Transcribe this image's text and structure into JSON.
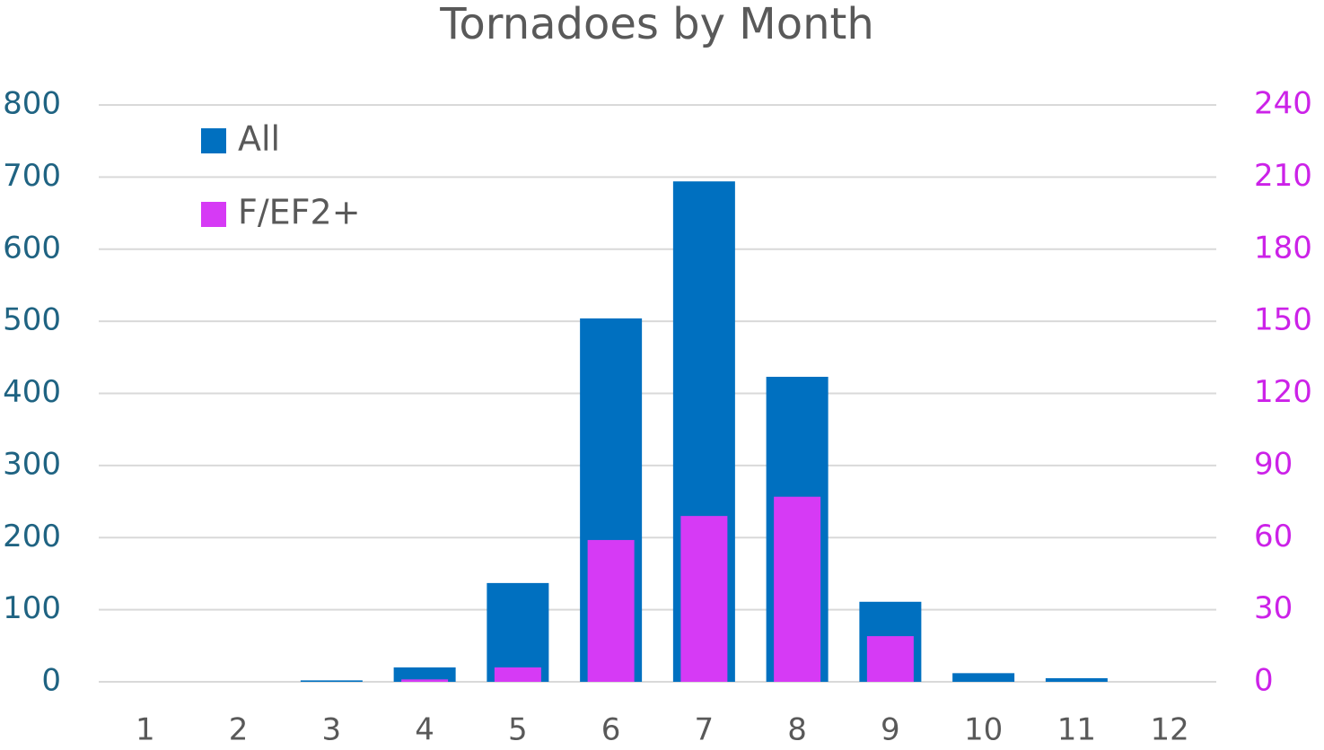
{
  "chart_data": {
    "type": "bar",
    "title": "Tornadoes by Month",
    "categories": [
      1,
      2,
      3,
      4,
      5,
      6,
      7,
      8,
      9,
      10,
      11,
      12
    ],
    "series": [
      {
        "name": "All",
        "color": "#0070c0",
        "values": [
          0,
          0,
          2,
          20,
          137,
          504,
          694,
          423,
          111,
          12,
          5,
          0
        ]
      },
      {
        "name": "F/EF2+",
        "color": "#d63af5",
        "axis": "y2",
        "values": [
          0,
          0,
          0,
          1,
          6,
          59,
          69,
          77,
          19,
          0,
          0,
          0
        ]
      }
    ],
    "ylim": [
      0,
      800
    ],
    "yticks": [
      0,
      100,
      200,
      300,
      400,
      500,
      600,
      700,
      800
    ],
    "y2lim": [
      0,
      240
    ],
    "y2ticks": [
      0,
      30,
      60,
      90,
      120,
      150,
      180,
      210,
      240
    ],
    "ycolor": "#1f6382",
    "y2color": "#cc22e8",
    "grid": true,
    "legend": "upper left"
  }
}
